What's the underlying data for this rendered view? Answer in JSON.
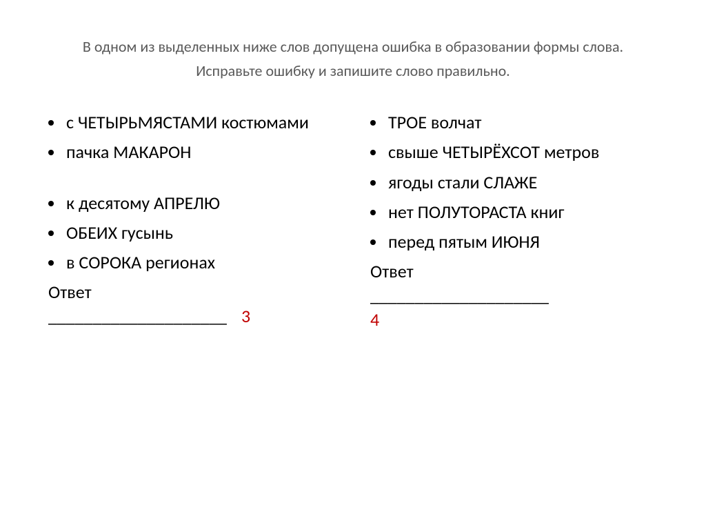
{
  "title": "В одном из выделенных ниже слов допущена ошибка в образовании формы слова. Исправьте ошибку и запишите слово правильно.",
  "left": {
    "items": [
      "с ЧЕТЫРЬМЯСТАМИ костюмами",
      "пачка МАКАРОН",
      "к десятому АПРЕЛЮ",
      "ОБЕИХ гусынь",
      "в СОРОКА регионах"
    ],
    "answer_label": "Ответ",
    "underline": "____________________",
    "number": "3"
  },
  "right": {
    "items": [
      "ТРОЕ волчат",
      "свыше ЧЕТЫРЁХСОТ метров",
      "ягоды стали СЛАЖЕ",
      "нет ПОЛУТОРАСТА книг",
      "перед пятым ИЮНЯ"
    ],
    "answer_label": "Ответ",
    "underline": "____________________",
    "number": "4"
  }
}
